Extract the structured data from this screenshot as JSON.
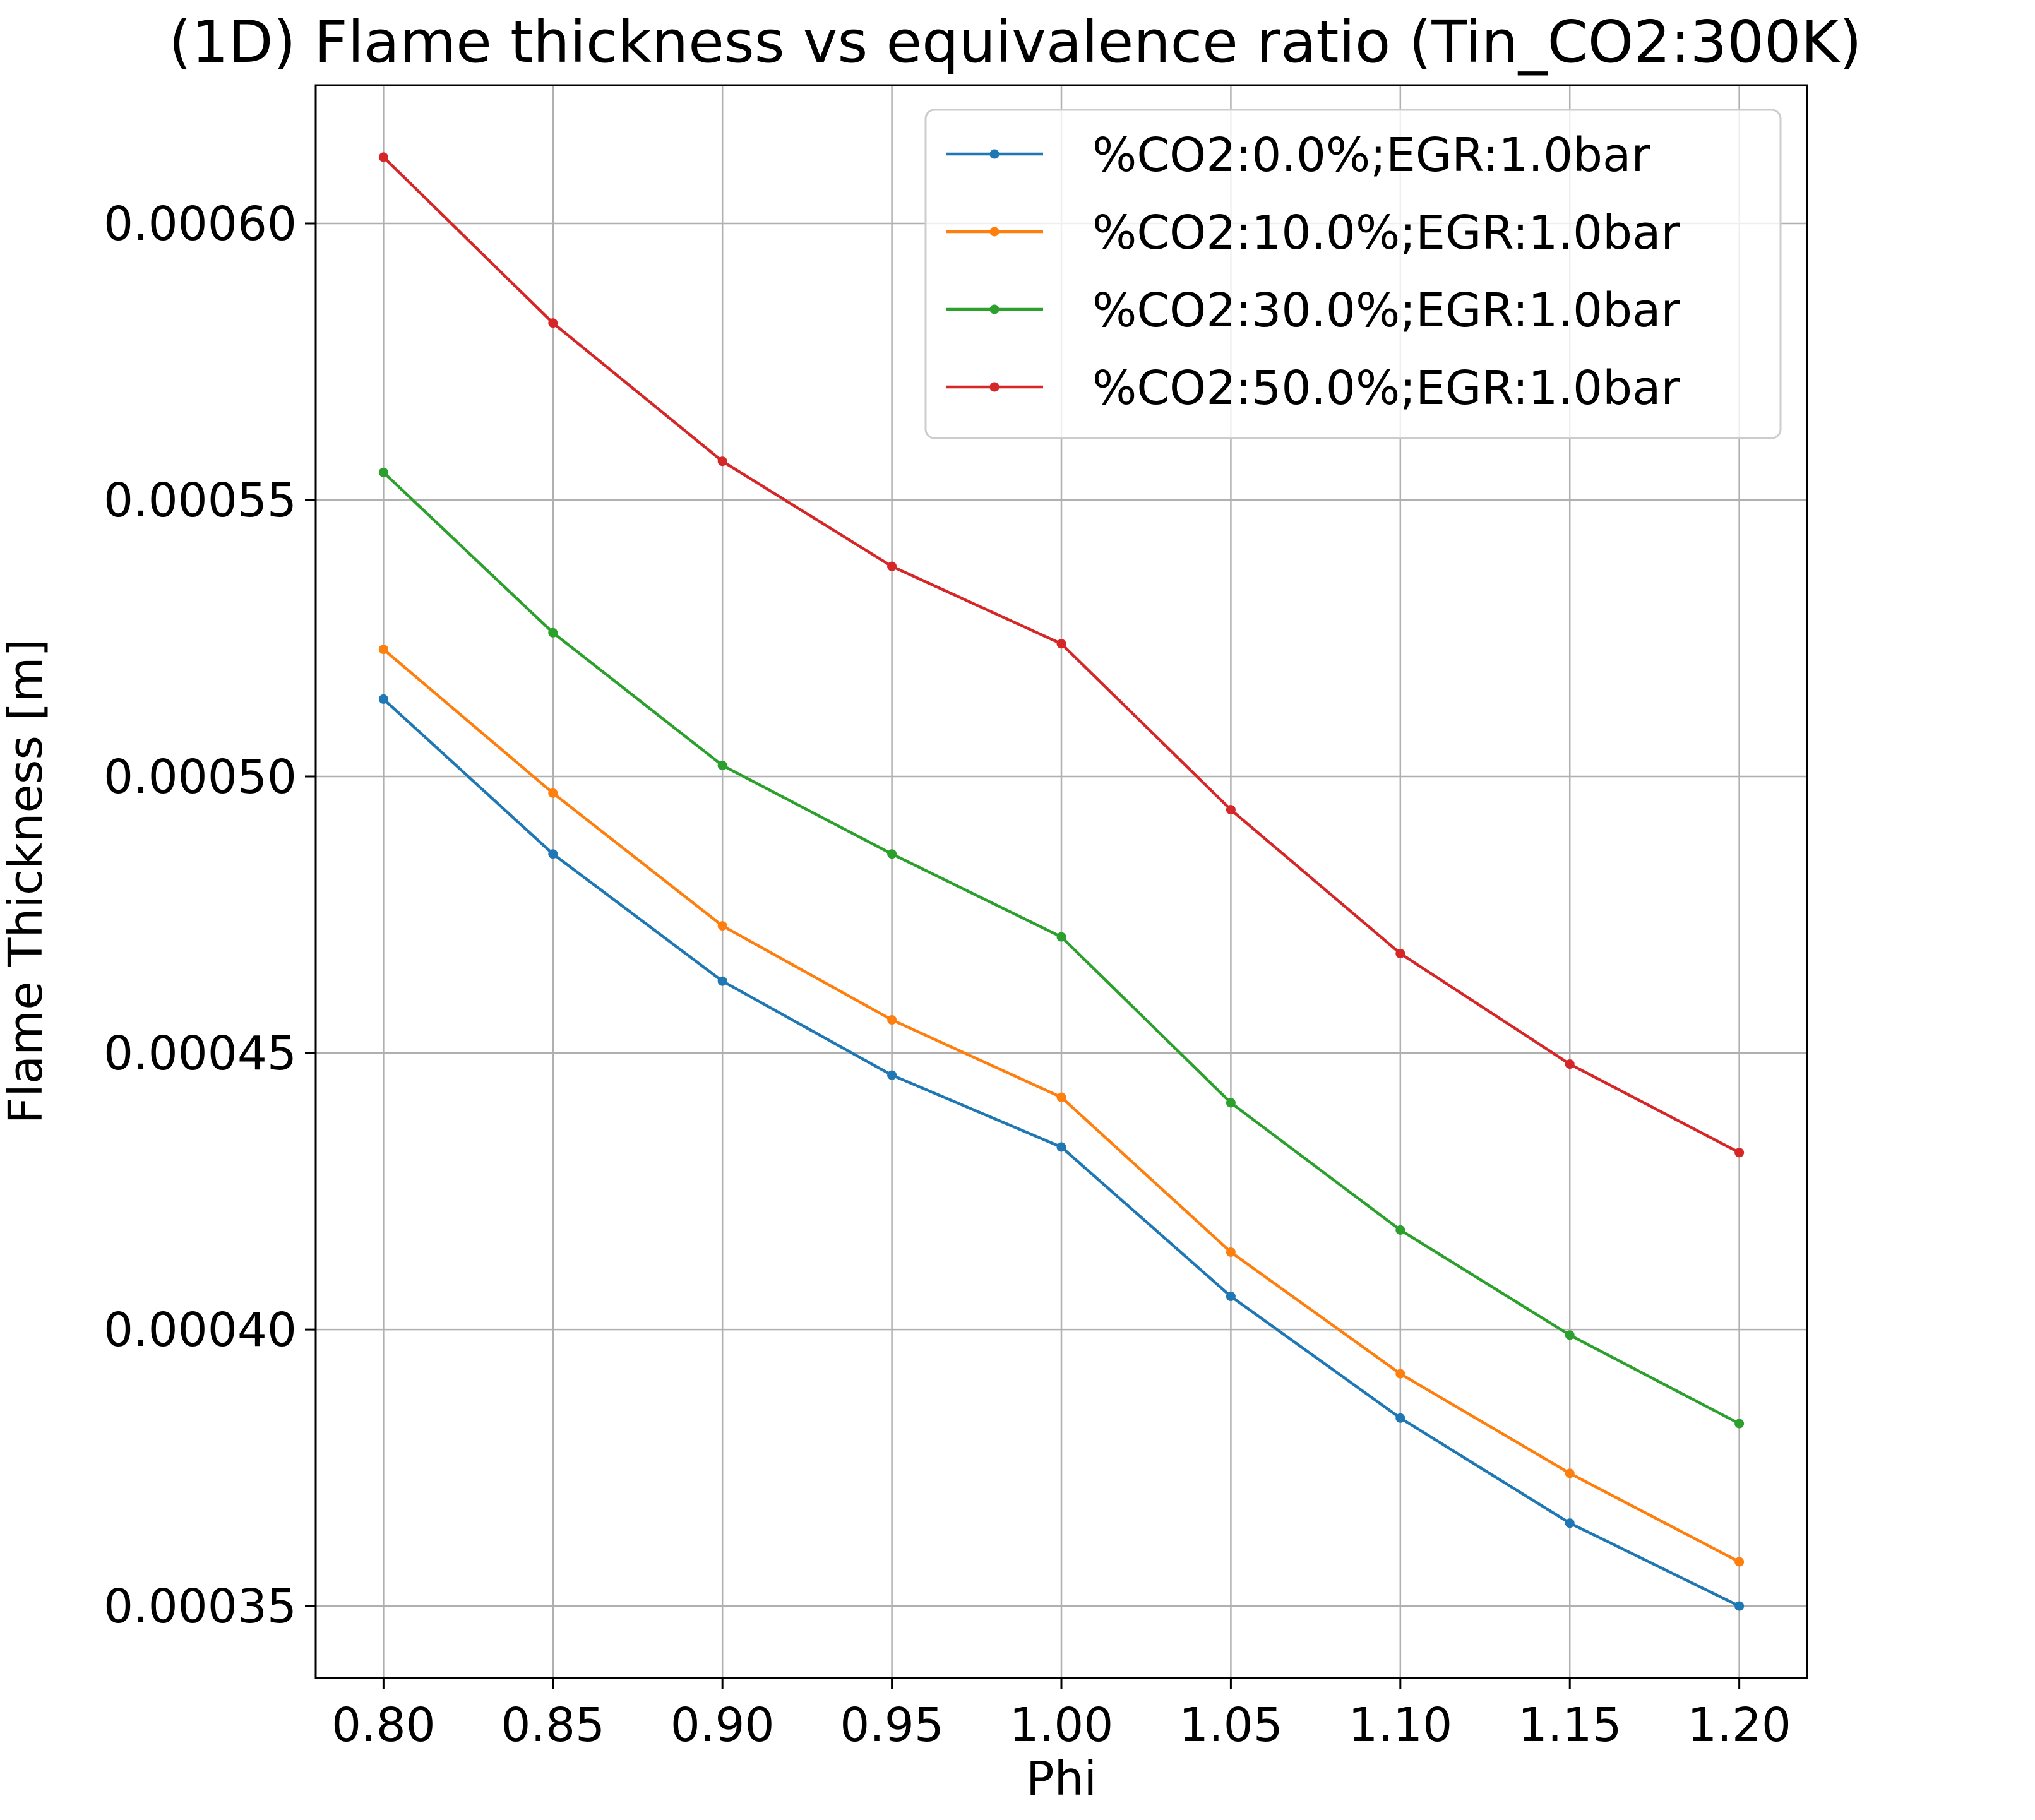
{
  "chart_data": {
    "type": "line",
    "title": "(1D) Flame thickness vs equivalence ratio (Tin_CO2:300K)",
    "xlabel": "Phi",
    "ylabel": "Flame Thickness [m]",
    "x": [
      0.8,
      0.85,
      0.9,
      0.95,
      1.0,
      1.05,
      1.1,
      1.15,
      1.2
    ],
    "xticks": [
      "0.80",
      "0.85",
      "0.90",
      "0.95",
      "1.00",
      "1.05",
      "1.10",
      "1.15",
      "1.20"
    ],
    "yticks": [
      "0.00035",
      "0.00040",
      "0.00045",
      "0.00050",
      "0.00055",
      "0.00060"
    ],
    "ytick_values": [
      0.00035,
      0.0004,
      0.00045,
      0.0005,
      0.00055,
      0.0006
    ],
    "xlim": [
      0.78,
      1.22
    ],
    "ylim": [
      0.000337,
      0.000625
    ],
    "grid": true,
    "legend_position": "top-right",
    "series": [
      {
        "name": "%CO2:0.0%;EGR:1.0bar",
        "color": "#1f77b4",
        "values": [
          0.000514,
          0.000486,
          0.000463,
          0.000446,
          0.000433,
          0.000406,
          0.000384,
          0.000365,
          0.00035
        ]
      },
      {
        "name": "%CO2:10.0%;EGR:1.0bar",
        "color": "#ff7f0e",
        "values": [
          0.000523,
          0.000497,
          0.000473,
          0.000456,
          0.000442,
          0.000414,
          0.000392,
          0.000374,
          0.000358
        ]
      },
      {
        "name": "%CO2:30.0%;EGR:1.0bar",
        "color": "#2ca02c",
        "values": [
          0.000555,
          0.000526,
          0.000502,
          0.000486,
          0.000471,
          0.000441,
          0.000418,
          0.000399,
          0.000383
        ]
      },
      {
        "name": "%CO2:50.0%;EGR:1.0bar",
        "color": "#d62728",
        "values": [
          0.000612,
          0.000582,
          0.000557,
          0.000538,
          0.000524,
          0.000494,
          0.000468,
          0.000448,
          0.000432
        ]
      }
    ]
  }
}
